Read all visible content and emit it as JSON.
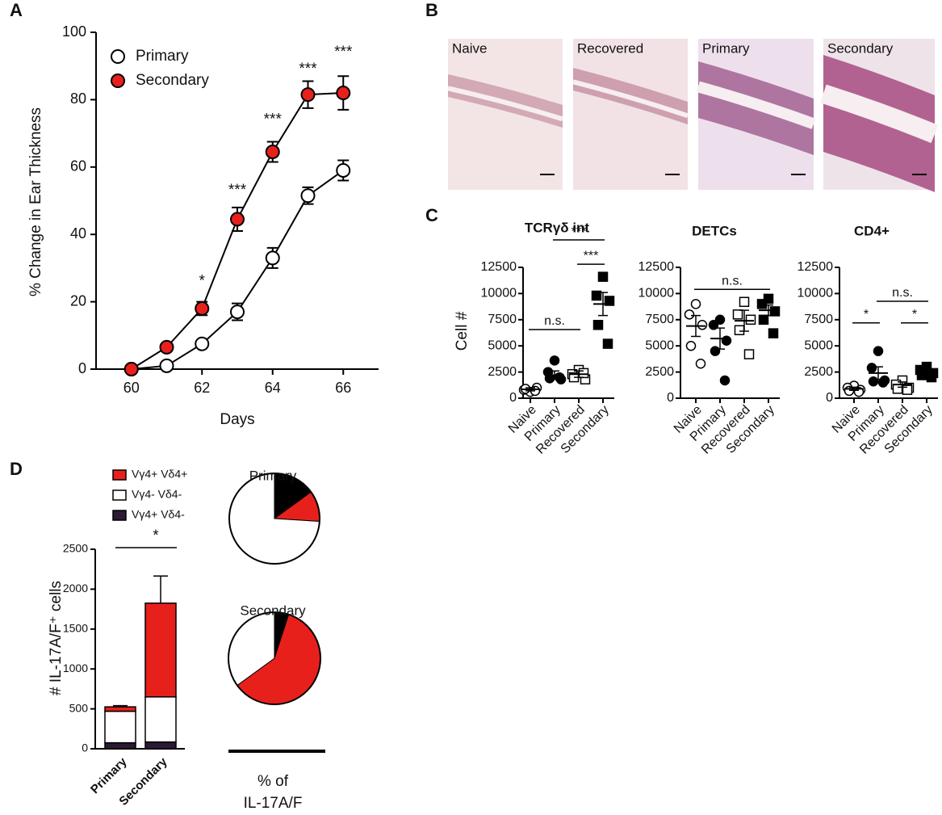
{
  "panel_labels": [
    "A",
    "B",
    "C",
    "D"
  ],
  "micrographs": {
    "labels": [
      "Naive",
      "Recovered",
      "Primary",
      "Secondary"
    ]
  },
  "chart_data": [
    {
      "type": "line",
      "xlabel": "Days",
      "ylabel": "% Change in Ear Thickness",
      "x": [
        60,
        61,
        62,
        63,
        64,
        65,
        66
      ],
      "xlim": [
        59,
        67
      ],
      "xticks": [
        60,
        62,
        64,
        66
      ],
      "ylim": [
        0,
        100
      ],
      "yticks": [
        0,
        20,
        40,
        60,
        80,
        100
      ],
      "series": [
        {
          "name": "Primary",
          "color": "#ffffff",
          "values": [
            0,
            1,
            7.5,
            17,
            33,
            51.5,
            59
          ],
          "errors": [
            0,
            0.5,
            1,
            2.5,
            3,
            2.5,
            3
          ]
        },
        {
          "name": "Secondary",
          "color": "#e8201c",
          "values": [
            0,
            6.5,
            18,
            44.5,
            64.5,
            81.5,
            82
          ],
          "errors": [
            0,
            0.5,
            2,
            3.5,
            3,
            4,
            5
          ]
        }
      ],
      "annotations": [
        {
          "text": "*",
          "x": 62,
          "y": 26
        },
        {
          "text": "***",
          "x": 63,
          "y": 53
        },
        {
          "text": "***",
          "x": 64,
          "y": 74
        },
        {
          "text": "***",
          "x": 65,
          "y": 89
        },
        {
          "text": "***",
          "x": 66,
          "y": 94
        }
      ]
    },
    {
      "type": "dotplot",
      "title": "TCRγδ int",
      "ylabel": "Cell #",
      "categories": [
        "Naive",
        "Primary",
        "Recovered",
        "Secondary"
      ],
      "markers": [
        "open-circle",
        "filled-circle",
        "open-square",
        "filled-square"
      ],
      "points": [
        [
          600,
          800,
          1000,
          900,
          700
        ],
        [
          3600,
          2500,
          1800,
          1900,
          2000
        ],
        [
          2700,
          2300,
          1800,
          2000,
          2400
        ],
        [
          11600,
          9800,
          9300,
          7000,
          5200
        ]
      ],
      "means": [
        850,
        2200,
        2300,
        9000
      ],
      "sems": [
        150,
        400,
        300,
        1100
      ],
      "ylim": [
        0,
        12500
      ],
      "yticks": [
        0,
        2500,
        5000,
        7500,
        10000,
        12500
      ],
      "annotations": [
        {
          "text": "n.s.",
          "from": 0,
          "to": 2,
          "y": 6560
        },
        {
          "text": "***",
          "from": 1,
          "to": 3,
          "y": 15120
        },
        {
          "text": "***",
          "from": 2,
          "to": 3,
          "y": 12800
        }
      ]
    },
    {
      "type": "dotplot",
      "title": "DETCs",
      "categories": [
        "Naive",
        "Primary",
        "Recovered",
        "Secondary"
      ],
      "markers": [
        "open-circle",
        "filled-circle",
        "open-square",
        "filled-square"
      ],
      "points": [
        [
          9000,
          8000,
          7000,
          5000,
          3300
        ],
        [
          7500,
          7000,
          5500,
          4500,
          1700
        ],
        [
          9200,
          8000,
          7500,
          6500,
          4200
        ],
        [
          9500,
          9000,
          8300,
          7500,
          6200
        ]
      ],
      "means": [
        6900,
        5700,
        7400,
        8400
      ],
      "sems": [
        1000,
        1000,
        1000,
        500
      ],
      "ylim": [
        0,
        12500
      ],
      "yticks": [
        0,
        2500,
        5000,
        7500,
        10000,
        12500
      ],
      "annotations": [
        {
          "text": "n.s.",
          "from": 0,
          "to": 3,
          "y": 10400
        }
      ]
    },
    {
      "type": "dotplot",
      "title": "CD4+",
      "categories": [
        "Naive",
        "Primary",
        "Recovered",
        "Secondary"
      ],
      "markers": [
        "open-circle",
        "filled-circle",
        "open-square",
        "filled-square"
      ],
      "points": [
        [
          1200,
          1000,
          800,
          700,
          600
        ],
        [
          4500,
          2900,
          1700,
          1600,
          1500
        ],
        [
          1700,
          1300,
          1000,
          900,
          800
        ],
        [
          3000,
          2700,
          2400,
          2200,
          2000
        ]
      ],
      "means": [
        900,
        2400,
        1300,
        2500
      ],
      "sems": [
        150,
        600,
        250,
        200
      ],
      "ylim": [
        0,
        12500
      ],
      "yticks": [
        0,
        2500,
        5000,
        7500,
        10000,
        12500
      ],
      "annotations": [
        {
          "text": "*",
          "from": 0,
          "to": 1,
          "y": 7200
        },
        {
          "text": "n.s.",
          "from": 1,
          "to": 3,
          "y": 9260
        },
        {
          "text": "*",
          "from": 2,
          "to": 3,
          "y": 7200
        }
      ]
    },
    {
      "type": "stacked_bar",
      "ylabel": "# IL-17A/F⁺ cells",
      "categories": [
        "Primary",
        "Secondary"
      ],
      "ylim": [
        0,
        2500
      ],
      "yticks": [
        0,
        500,
        1000,
        1500,
        2000,
        2500
      ],
      "series": [
        {
          "name": "Vγ4+ Vδ4-",
          "color": "#2b1a33",
          "values": [
            75,
            85
          ],
          "errors": [
            10,
            10
          ]
        },
        {
          "name": "Vγ4- Vδ4-",
          "color": "#ffffff",
          "values": [
            395,
            565
          ],
          "errors": [
            20,
            80
          ]
        },
        {
          "name": "Vγ4+ Vδ4+",
          "color": "#e8201c",
          "values": [
            55,
            1175
          ],
          "errors": [
            15,
            340
          ]
        }
      ],
      "annotations": [
        {
          "text": "*",
          "from": 0,
          "to": 1,
          "y": 2520
        }
      ]
    },
    {
      "type": "pie",
      "title": "Primary",
      "values": [
        15,
        11,
        74
      ],
      "colors": [
        "#000000",
        "#e8201c",
        "#ffffff"
      ]
    },
    {
      "type": "pie",
      "title": "Secondary",
      "values": [
        5,
        60,
        35
      ],
      "colors": [
        "#000000",
        "#e8201c",
        "#ffffff"
      ],
      "caption": [
        "% of",
        "IL-17A/F"
      ]
    }
  ]
}
